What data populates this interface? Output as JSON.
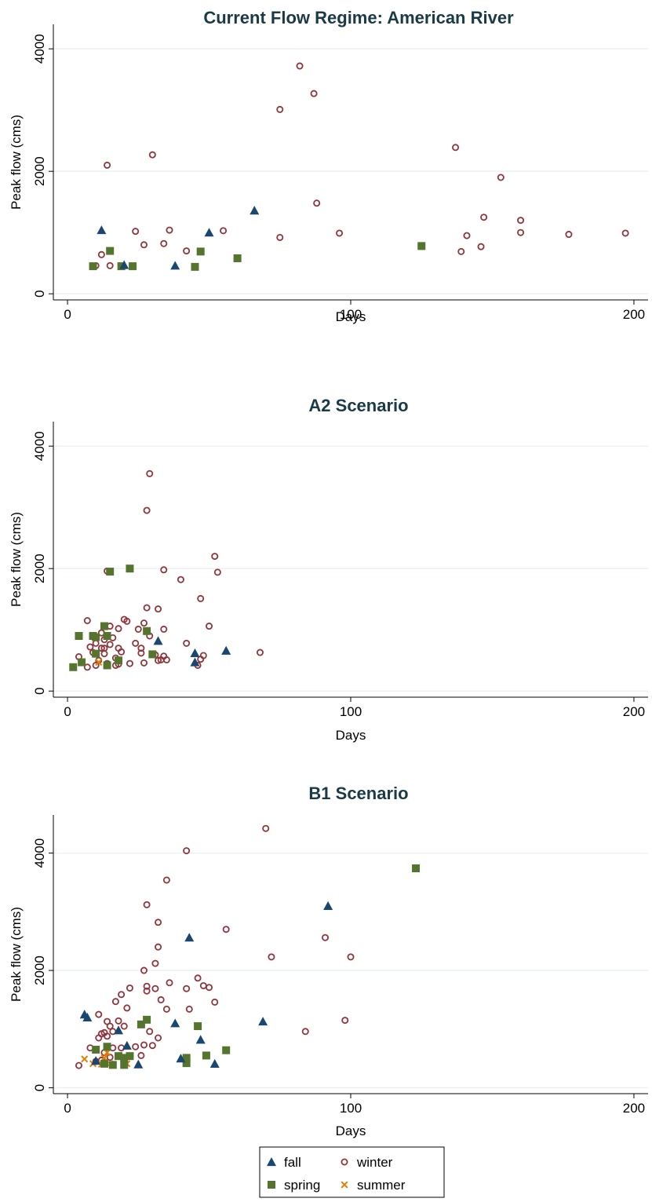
{
  "chart_data": [
    {
      "type": "scatter",
      "title": "Current Flow Regime: American River",
      "xlabel": "Days",
      "ylabel": "Peak flow (cms)",
      "xlim": [
        -5,
        205
      ],
      "ylim": [
        -100,
        4400
      ],
      "xticks": [
        0,
        100,
        200
      ],
      "yticks": [
        0,
        2000,
        4000
      ],
      "grid": true,
      "series": [
        {
          "name": "fall",
          "points": [
            [
              12,
              1040
            ],
            [
              20,
              470
            ],
            [
              38,
              460
            ],
            [
              50,
              1000
            ],
            [
              66,
              1360
            ]
          ]
        },
        {
          "name": "spring",
          "points": [
            [
              9,
              450
            ],
            [
              15,
              700
            ],
            [
              19,
              450
            ],
            [
              23,
              450
            ],
            [
              45,
              440
            ],
            [
              47,
              690
            ],
            [
              60,
              580
            ],
            [
              125,
              780
            ]
          ]
        },
        {
          "name": "winter",
          "points": [
            [
              10,
              460
            ],
            [
              12,
              640
            ],
            [
              14,
              2100
            ],
            [
              15,
              460
            ],
            [
              24,
              1020
            ],
            [
              27,
              800
            ],
            [
              30,
              2270
            ],
            [
              34,
              820
            ],
            [
              36,
              1040
            ],
            [
              42,
              700
            ],
            [
              55,
              1030
            ],
            [
              75,
              920
            ],
            [
              75,
              3010
            ],
            [
              82,
              3720
            ],
            [
              87,
              3270
            ],
            [
              88,
              1480
            ],
            [
              96,
              990
            ],
            [
              137,
              2390
            ],
            [
              139,
              690
            ],
            [
              141,
              950
            ],
            [
              146,
              770
            ],
            [
              147,
              1250
            ],
            [
              153,
              1900
            ],
            [
              160,
              1000
            ],
            [
              160,
              1200
            ],
            [
              177,
              970
            ],
            [
              197,
              990
            ]
          ]
        },
        {
          "name": "summer",
          "points": []
        }
      ]
    },
    {
      "type": "scatter",
      "title": "A2 Scenario",
      "xlabel": "Days",
      "ylabel": "Peak flow (cms)",
      "xlim": [
        -5,
        205
      ],
      "ylim": [
        -100,
        4400
      ],
      "xticks": [
        0,
        100,
        200
      ],
      "yticks": [
        0,
        2000,
        4000
      ],
      "grid": true,
      "series": [
        {
          "name": "fall",
          "points": [
            [
              32,
              820
            ],
            [
              45,
              620
            ],
            [
              45,
              470
            ],
            [
              56,
              660
            ]
          ]
        },
        {
          "name": "spring",
          "points": [
            [
              2,
              390
            ],
            [
              4,
              900
            ],
            [
              5,
              470
            ],
            [
              9,
              900
            ],
            [
              10,
              610
            ],
            [
              10,
              880
            ],
            [
              13,
              1060
            ],
            [
              14,
              420
            ],
            [
              14,
              900
            ],
            [
              15,
              1950
            ],
            [
              18,
              500
            ],
            [
              22,
              2000
            ],
            [
              28,
              980
            ],
            [
              30,
              600
            ]
          ]
        },
        {
          "name": "winter",
          "points": [
            [
              4,
              560
            ],
            [
              7,
              1150
            ],
            [
              7,
              390
            ],
            [
              8,
              720
            ],
            [
              9,
              630
            ],
            [
              10,
              780
            ],
            [
              10,
              420
            ],
            [
              11,
              500
            ],
            [
              12,
              700
            ],
            [
              12,
              950
            ],
            [
              13,
              610
            ],
            [
              13,
              840
            ],
            [
              13,
              700
            ],
            [
              14,
              1960
            ],
            [
              14,
              450
            ],
            [
              15,
              760
            ],
            [
              15,
              1060
            ],
            [
              16,
              870
            ],
            [
              17,
              420
            ],
            [
              17,
              540
            ],
            [
              18,
              1020
            ],
            [
              18,
              700
            ],
            [
              18,
              440
            ],
            [
              19,
              640
            ],
            [
              20,
              1170
            ],
            [
              21,
              1140
            ],
            [
              22,
              450
            ],
            [
              24,
              780
            ],
            [
              25,
              1010
            ],
            [
              26,
              620
            ],
            [
              26,
              700
            ],
            [
              27,
              1110
            ],
            [
              27,
              460
            ],
            [
              28,
              1360
            ],
            [
              28,
              2950
            ],
            [
              29,
              3550
            ],
            [
              29,
              900
            ],
            [
              31,
              590
            ],
            [
              32,
              1340
            ],
            [
              32,
              500
            ],
            [
              33,
              510
            ],
            [
              34,
              570
            ],
            [
              34,
              1980
            ],
            [
              34,
              1010
            ],
            [
              35,
              510
            ],
            [
              40,
              1820
            ],
            [
              42,
              780
            ],
            [
              46,
              420
            ],
            [
              47,
              1510
            ],
            [
              47,
              520
            ],
            [
              48,
              580
            ],
            [
              50,
              1060
            ],
            [
              52,
              2200
            ],
            [
              53,
              1940
            ],
            [
              68,
              630
            ]
          ]
        },
        {
          "name": "summer",
          "points": [
            [
              11,
              470
            ]
          ]
        }
      ]
    },
    {
      "type": "scatter",
      "title": "B1 Scenario",
      "xlabel": "Days",
      "ylabel": "Peak flow (cms)",
      "xlim": [
        -5,
        205
      ],
      "ylim": [
        -100,
        4650
      ],
      "xticks": [
        0,
        100,
        200
      ],
      "yticks": [
        0,
        2000,
        4000
      ],
      "grid": true,
      "series": [
        {
          "name": "fall",
          "points": [
            [
              6,
              1250
            ],
            [
              7,
              1200
            ],
            [
              10,
              460
            ],
            [
              18,
              980
            ],
            [
              21,
              720
            ],
            [
              25,
              400
            ],
            [
              38,
              1100
            ],
            [
              40,
              500
            ],
            [
              43,
              2560
            ],
            [
              47,
              820
            ],
            [
              52,
              410
            ],
            [
              69,
              1130
            ],
            [
              92,
              3100
            ]
          ]
        },
        {
          "name": "spring",
          "points": [
            [
              10,
              650
            ],
            [
              13,
              410
            ],
            [
              14,
              700
            ],
            [
              16,
              390
            ],
            [
              18,
              540
            ],
            [
              20,
              510
            ],
            [
              20,
              390
            ],
            [
              22,
              540
            ],
            [
              26,
              1080
            ],
            [
              28,
              1160
            ],
            [
              42,
              510
            ],
            [
              42,
              420
            ],
            [
              46,
              1050
            ],
            [
              49,
              550
            ],
            [
              56,
              640
            ],
            [
              123,
              3740
            ]
          ]
        },
        {
          "name": "winter",
          "points": [
            [
              4,
              380
            ],
            [
              8,
              680
            ],
            [
              10,
              450
            ],
            [
              11,
              1250
            ],
            [
              11,
              850
            ],
            [
              12,
              920
            ],
            [
              12,
              470
            ],
            [
              13,
              600
            ],
            [
              13,
              940
            ],
            [
              14,
              1130
            ],
            [
              14,
              880
            ],
            [
              15,
              1050
            ],
            [
              15,
              520
            ],
            [
              16,
              680
            ],
            [
              16,
              960
            ],
            [
              17,
              1470
            ],
            [
              18,
              1140
            ],
            [
              19,
              680
            ],
            [
              19,
              1590
            ],
            [
              20,
              1050
            ],
            [
              21,
              1360
            ],
            [
              22,
              1700
            ],
            [
              24,
              700
            ],
            [
              26,
              550
            ],
            [
              27,
              730
            ],
            [
              27,
              2000
            ],
            [
              28,
              3120
            ],
            [
              28,
              1730
            ],
            [
              28,
              1650
            ],
            [
              29,
              960
            ],
            [
              30,
              720
            ],
            [
              31,
              2120
            ],
            [
              31,
              1690
            ],
            [
              32,
              2820
            ],
            [
              32,
              2400
            ],
            [
              32,
              850
            ],
            [
              33,
              1500
            ],
            [
              35,
              1340
            ],
            [
              35,
              3540
            ],
            [
              36,
              1790
            ],
            [
              42,
              4040
            ],
            [
              42,
              1690
            ],
            [
              43,
              1340
            ],
            [
              46,
              1870
            ],
            [
              48,
              1740
            ],
            [
              50,
              1710
            ],
            [
              52,
              1460
            ],
            [
              56,
              2700
            ],
            [
              70,
              4420
            ],
            [
              72,
              2230
            ],
            [
              84,
              960
            ],
            [
              91,
              2560
            ],
            [
              98,
              1150
            ],
            [
              100,
              2230
            ]
          ]
        },
        {
          "name": "summer",
          "points": [
            [
              6,
              490
            ],
            [
              9,
              410
            ],
            [
              12,
              400
            ],
            [
              13,
              510
            ],
            [
              13,
              420
            ],
            [
              14,
              600
            ],
            [
              14,
              700
            ],
            [
              15,
              410
            ],
            [
              21,
              410
            ]
          ]
        }
      ]
    }
  ],
  "legend": {
    "position": "bottom",
    "items": [
      {
        "series": "fall",
        "label": "fall"
      },
      {
        "series": "winter",
        "label": "winter"
      },
      {
        "series": "spring",
        "label": "spring"
      },
      {
        "series": "summer",
        "label": "summer"
      }
    ]
  },
  "colors": {
    "fall": "#1a476f",
    "spring": "#55752f",
    "winter": "#90353b",
    "summer": "#e37e00",
    "grid": "#eaf2f3",
    "title": "#1a3a46"
  }
}
